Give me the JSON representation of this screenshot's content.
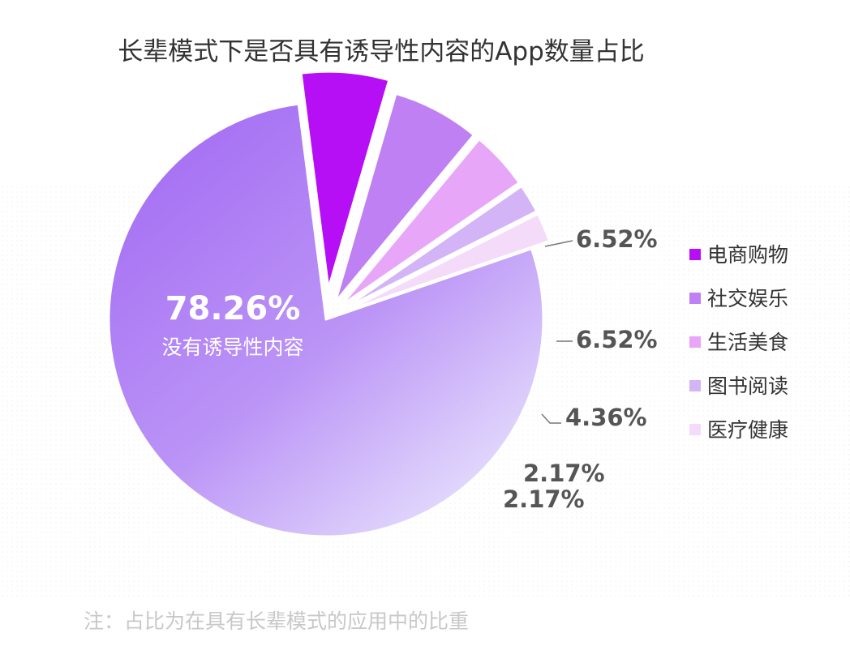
{
  "chart_data": {
    "type": "pie",
    "title": "长辈模式下是否具有诱导性内容的App数量占比",
    "slices": [
      {
        "name": "没有诱导性内容",
        "value": 78.26,
        "label": "78.26%",
        "color": "#a878f4"
      },
      {
        "name": "电商购物",
        "value": 6.52,
        "label": "6.52%",
        "color": "#b60ff5"
      },
      {
        "name": "社交娱乐",
        "value": 6.52,
        "label": "6.52%",
        "color": "#bf80f3"
      },
      {
        "name": "生活美食",
        "value": 4.36,
        "label": "4.36%",
        "color": "#e7a6f8"
      },
      {
        "name": "图书阅读",
        "value": 2.17,
        "label": "2.17%",
        "color": "#d3b4f6"
      },
      {
        "name": "医疗健康",
        "value": 2.17,
        "label": "2.17%",
        "color": "#f5dbfa"
      }
    ],
    "legend": {
      "position": "right",
      "entries": [
        "电商购物",
        "社交娱乐",
        "生活美食",
        "图书阅读",
        "医疗健康"
      ]
    },
    "note": "注：占比为在具有长辈模式的应用中的比重"
  }
}
